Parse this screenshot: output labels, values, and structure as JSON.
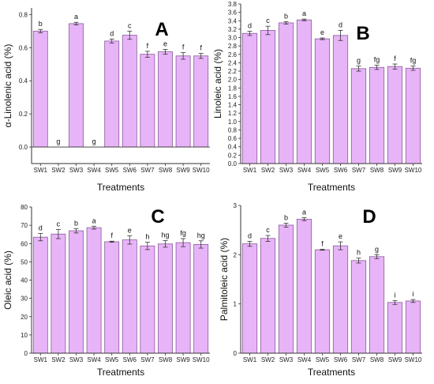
{
  "bar_color": "#e8b4f8",
  "bar_stroke": "#8a5a9a",
  "chart_data": [
    {
      "panel": "A",
      "type": "bar",
      "categories": [
        "SW1",
        "SW2",
        "SW3",
        "SW4",
        "SW5",
        "SW6",
        "SW7",
        "SW8",
        "SW9",
        "SW10"
      ],
      "values": [
        0.7,
        0.0,
        0.745,
        0.0,
        0.64,
        0.675,
        0.56,
        0.575,
        0.55,
        0.55
      ],
      "errors": [
        0.01,
        0,
        0.008,
        0,
        0.012,
        0.025,
        0.018,
        0.015,
        0.02,
        0.015
      ],
      "letters": [
        "b",
        "g",
        "a",
        "g",
        "d",
        "c",
        "f",
        "e",
        "f",
        "f"
      ],
      "ylabel": "α-Linolenic acid (%)",
      "xlabel": "Treatments",
      "ylim": [
        -0.1,
        0.84
      ],
      "yticks": [
        0.0,
        0.2,
        0.4,
        0.6,
        0.8
      ],
      "ytick_labels": [
        "0.0",
        "0.2",
        "0.4",
        "0.6",
        "0.8"
      ]
    },
    {
      "panel": "B",
      "type": "bar",
      "categories": [
        "SW1",
        "SW2",
        "SW3",
        "SW4",
        "SW5",
        "SW6",
        "SW7",
        "SW8",
        "SW9",
        "SW10"
      ],
      "values": [
        3.1,
        3.17,
        3.35,
        3.42,
        2.97,
        3.05,
        2.26,
        2.29,
        2.31,
        2.27
      ],
      "errors": [
        0.05,
        0.1,
        0.03,
        0.02,
        0.02,
        0.12,
        0.06,
        0.05,
        0.06,
        0.05
      ],
      "letters": [
        "d",
        "c",
        "b",
        "a",
        "e",
        "d",
        "g",
        "fg",
        "f",
        "fg"
      ],
      "ylabel": "Linoleic acid (%)",
      "xlabel": "Treatments",
      "ylim": [
        0,
        3.8
      ],
      "yticks": [
        0.0,
        0.2,
        0.4,
        0.6,
        0.8,
        1.0,
        1.2,
        1.4,
        1.6,
        1.8,
        2.0,
        2.2,
        2.4,
        2.6,
        2.8,
        3.0,
        3.2,
        3.4,
        3.6,
        3.8
      ],
      "ytick_labels": [
        "0.0",
        "0.2",
        "0.4",
        "0.6",
        "0.8",
        "1.0",
        "1.2",
        "1.4",
        "1.6",
        "1.8",
        "2.0",
        "2.2",
        "2.4",
        "2.6",
        "2.8",
        "3.0",
        "3.2",
        "3.4",
        "3.6",
        "3.8"
      ]
    },
    {
      "panel": "C",
      "type": "bar",
      "categories": [
        "SW1",
        "SW2",
        "SW3",
        "SW4",
        "SW5",
        "SW6",
        "SW7",
        "SW8",
        "SW9",
        "SW10"
      ],
      "values": [
        63.5,
        65.2,
        67.0,
        68.7,
        61.0,
        62.0,
        58.7,
        59.8,
        60.5,
        59.5
      ],
      "errors": [
        2.0,
        2.5,
        1.2,
        0.8,
        0.3,
        2.3,
        2.0,
        1.8,
        2.2,
        2.0
      ],
      "letters": [
        "d",
        "c",
        "b",
        "a",
        "f",
        "e",
        "h",
        "hg",
        "fg",
        "hg"
      ],
      "ylabel": "Oleic acid (%)",
      "xlabel": "Treatments",
      "ylim": [
        0,
        80
      ],
      "yticks": [
        0,
        10,
        20,
        30,
        40,
        50,
        60,
        70,
        80
      ],
      "ytick_labels": [
        "0",
        "10",
        "20",
        "30",
        "40",
        "50",
        "60",
        "70",
        "80"
      ]
    },
    {
      "panel": "D",
      "type": "bar",
      "categories": [
        "SW1",
        "SW2",
        "SW3",
        "SW4",
        "SW5",
        "SW6",
        "SW7",
        "SW8",
        "SW9",
        "SW10"
      ],
      "values": [
        2.22,
        2.33,
        2.6,
        2.72,
        2.1,
        2.18,
        1.88,
        1.96,
        1.03,
        1.06
      ],
      "errors": [
        0.05,
        0.06,
        0.04,
        0.03,
        0.01,
        0.08,
        0.05,
        0.04,
        0.04,
        0.03
      ],
      "letters": [
        "d",
        "c",
        "b",
        "a",
        "f",
        "e",
        "h",
        "g",
        "i",
        "i"
      ],
      "ylabel": "Palmitoleic acid (%)",
      "xlabel": "Treatments",
      "ylim": [
        0,
        3
      ],
      "yticks": [
        0,
        1,
        2,
        3
      ],
      "ytick_labels": [
        "0",
        "1",
        "2",
        "3"
      ]
    }
  ]
}
